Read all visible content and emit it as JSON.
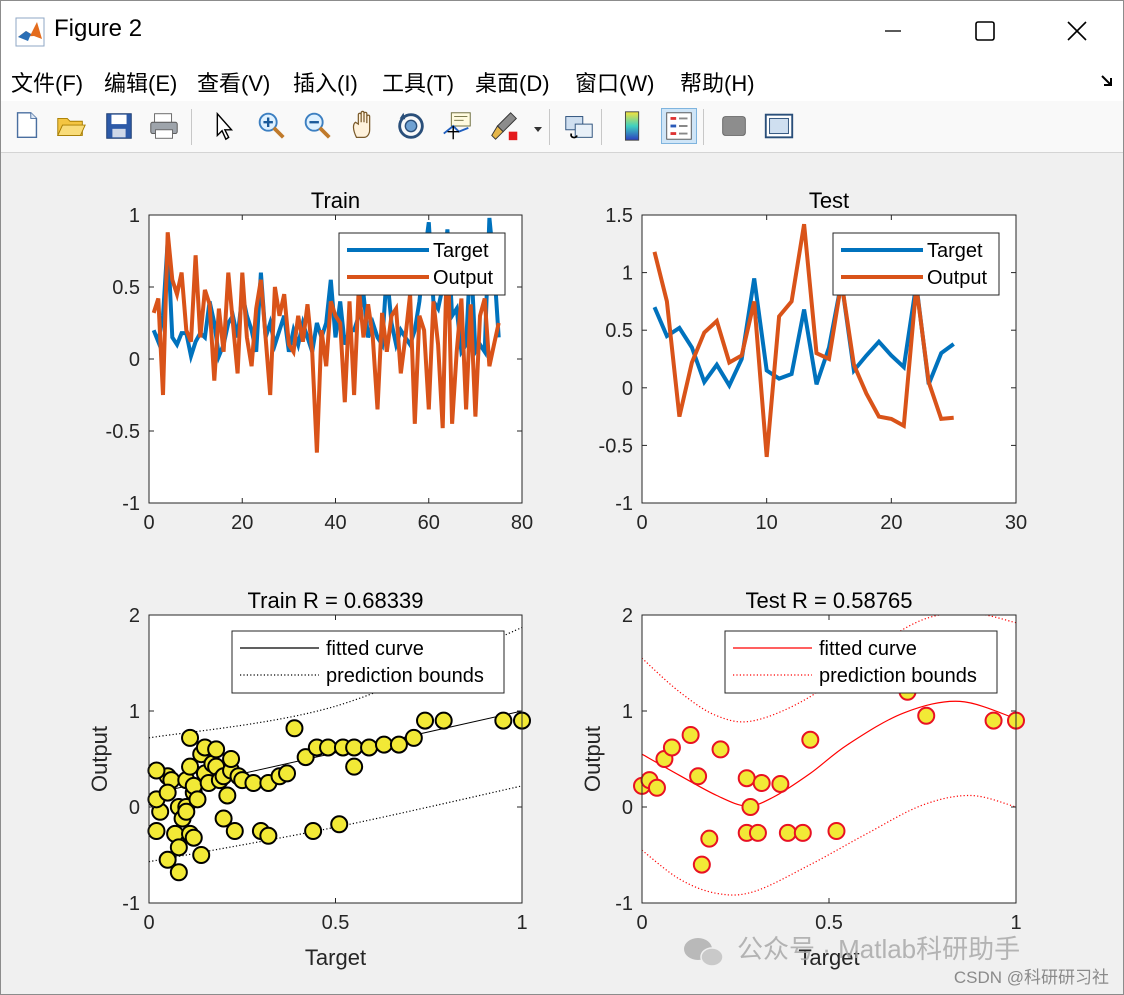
{
  "window": {
    "title": "Figure 2"
  },
  "menu": [
    "文件(F)",
    "编辑(E)",
    "查看(V)",
    "插入(I)",
    "工具(T)",
    "桌面(D)",
    "窗口(W)",
    "帮助(H)"
  ],
  "toolbar": [
    {
      "name": "new-figure-icon",
      "active": false
    },
    {
      "name": "open-file-icon",
      "active": false
    },
    {
      "name": "save-icon",
      "active": false
    },
    {
      "name": "print-icon",
      "active": false
    },
    {
      "name": "edit-plot-icon",
      "active": false
    },
    {
      "name": "zoom-in-icon",
      "active": false
    },
    {
      "name": "zoom-out-icon",
      "active": false
    },
    {
      "name": "pan-icon",
      "active": false
    },
    {
      "name": "rotate-3d-icon",
      "active": false
    },
    {
      "name": "data-cursor-icon",
      "active": false
    },
    {
      "name": "brush-icon",
      "active": false
    },
    {
      "name": "link-plot-icon",
      "active": false
    },
    {
      "name": "colorbar-icon",
      "active": false
    },
    {
      "name": "legend-icon",
      "active": true
    },
    {
      "name": "hide-plot-tools-icon",
      "active": false
    },
    {
      "name": "show-plot-tools-icon",
      "active": false
    }
  ],
  "colors": {
    "target": "#0072bd",
    "output": "#d95319",
    "marker_fill": "#f2e936",
    "test_fit": "#ff0000"
  },
  "watermark": {
    "main": "公众号 · Matlab科研助手",
    "csdn": "CSDN @科研研习社"
  },
  "chart_data": [
    {
      "id": "train-series",
      "type": "line",
      "title": "Train",
      "xlim": [
        0,
        80
      ],
      "ylim": [
        -1,
        1
      ],
      "xticks": [
        0,
        20,
        40,
        60,
        80
      ],
      "yticks": [
        -1,
        -0.5,
        0,
        0.5,
        1
      ],
      "xticklabels": [
        "0",
        "20",
        "40",
        "60",
        "80"
      ],
      "yticklabels": [
        "-1",
        "-0.5",
        "0",
        "0.5",
        "1"
      ],
      "xlabel": "",
      "ylabel": "",
      "legend_position": "top-right",
      "series": [
        {
          "name": "Target",
          "color": "#0072bd",
          "values": [
            0.2,
            0.12,
            0.3,
            0.82,
            0.15,
            0.1,
            0.18,
            0.18,
            0.02,
            0.12,
            0.18,
            0.15,
            0.4,
            0.25,
            0.02,
            0.1,
            0.25,
            0.3,
            0.15,
            0.45,
            0.3,
            0.2,
            0.05,
            0.6,
            0.15,
            0.25,
            0.1,
            0.2,
            0.3,
            0.05,
            0.2,
            0.1,
            0.25,
            0.15,
            0.05,
            0.25,
            0.15,
            0.25,
            0.55,
            0.15,
            0.4,
            0.1,
            0.2,
            0.2,
            0.3,
            0.45,
            0.15,
            0.25,
            0.15,
            0.1,
            0.6,
            0.25,
            0.1,
            0.2,
            0.15,
            0.1,
            0.2,
            0.4,
            0.7,
            0.95,
            0.4,
            0.35,
            0.5,
            0.9,
            0.3,
            0.35,
            0.05,
            0.1,
            0.75,
            0.05,
            0.1,
            0.05,
            0.98,
            0.65,
            0.15
          ]
        },
        {
          "name": "Output",
          "color": "#d95319",
          "values": [
            0.32,
            0.42,
            -0.25,
            0.88,
            0.55,
            0.45,
            0.6,
            0.2,
            0.12,
            0.72,
            0.15,
            0.48,
            0.38,
            -0.15,
            0.35,
            0.05,
            0.6,
            0.25,
            -0.1,
            0.6,
            0.15,
            -0.05,
            0.35,
            0.55,
            0.15,
            -0.25,
            0.5,
            0.3,
            0.45,
            0.1,
            0.05,
            0.3,
            0.12,
            0.38,
            0.05,
            -0.65,
            0.2,
            -0.05,
            0.4,
            0.3,
            0.25,
            -0.3,
            0.4,
            -0.25,
            0.5,
            0.15,
            0.38,
            0.15,
            -0.35,
            0.32,
            0.05,
            0.3,
            0.35,
            -0.1,
            0.15,
            0.45,
            -0.45,
            0.3,
            0.2,
            -0.35,
            0.4,
            0.1,
            -0.48,
            0.85,
            -0.45,
            0.05,
            0.42,
            -0.35,
            0.38,
            -0.4,
            0.3,
            0.42,
            -0.05,
            0.1,
            0.25
          ]
        }
      ]
    },
    {
      "id": "test-series",
      "type": "line",
      "title": "Test",
      "xlim": [
        0,
        30
      ],
      "ylim": [
        -1,
        1.5
      ],
      "xticks": [
        0,
        10,
        20,
        30
      ],
      "yticks": [
        -1,
        -0.5,
        0,
        0.5,
        1,
        1.5
      ],
      "xticklabels": [
        "0",
        "10",
        "20",
        "30"
      ],
      "yticklabels": [
        "-1",
        "-0.5",
        "0",
        "0.5",
        "1",
        "1.5"
      ],
      "xlabel": "",
      "ylabel": "",
      "legend_position": "top-right",
      "series": [
        {
          "name": "Target",
          "color": "#0072bd",
          "values": [
            0.7,
            0.45,
            0.52,
            0.35,
            0.05,
            0.2,
            0.02,
            0.25,
            0.95,
            0.15,
            0.08,
            0.12,
            0.68,
            0.03,
            0.35,
            0.92,
            0.15,
            0.28,
            0.4,
            0.28,
            0.18,
            0.9,
            0.03,
            0.3,
            0.38
          ]
        },
        {
          "name": "Output",
          "color": "#d95319",
          "values": [
            1.18,
            0.75,
            -0.25,
            0.22,
            0.48,
            0.58,
            0.22,
            0.28,
            0.75,
            -0.6,
            0.62,
            0.75,
            1.42,
            0.3,
            0.25,
            0.92,
            0.2,
            -0.05,
            -0.25,
            -0.27,
            -0.33,
            0.88,
            0.05,
            -0.27,
            -0.26
          ]
        }
      ]
    },
    {
      "id": "train-regression",
      "type": "scatter",
      "title": "Train  R = 0.68339",
      "xlim": [
        0,
        1
      ],
      "ylim": [
        -1,
        2
      ],
      "xticks": [
        0,
        0.5,
        1
      ],
      "yticks": [
        -1,
        0,
        1,
        2
      ],
      "xticklabels": [
        "0",
        "0.5",
        "1"
      ],
      "yticklabels": [
        "-1",
        "0",
        "1",
        "2"
      ],
      "xlabel": "Target",
      "ylabel": "Output",
      "legend_position": "top-right",
      "legend": [
        "fitted curve",
        "prediction bounds"
      ],
      "fit": {
        "color": "#000000",
        "kind": "linear",
        "x0": 0,
        "y0": 0.13,
        "x1": 1,
        "y1": 1.0
      },
      "bounds": {
        "color": "#000000",
        "lower": [
          [
            0,
            -0.57
          ],
          [
            0.5,
            -0.21
          ],
          [
            1,
            0.22
          ]
        ],
        "upper": [
          [
            0,
            0.72
          ],
          [
            0.5,
            1.05
          ],
          [
            1,
            1.87
          ]
        ]
      },
      "marker": {
        "fill": "#f2e936",
        "edge": "#000000"
      },
      "points": [
        [
          0.05,
          0.32
        ],
        [
          0.06,
          0.28
        ],
        [
          0.02,
          0.38
        ],
        [
          0.08,
          0.0
        ],
        [
          0.1,
          0.0
        ],
        [
          0.12,
          0.15
        ],
        [
          0.1,
          0.28
        ],
        [
          0.11,
          0.42
        ],
        [
          0.12,
          0.22
        ],
        [
          0.14,
          0.55
        ],
        [
          0.15,
          0.62
        ],
        [
          0.15,
          0.35
        ],
        [
          0.16,
          0.25
        ],
        [
          0.17,
          0.45
        ],
        [
          0.18,
          0.6
        ],
        [
          0.18,
          0.42
        ],
        [
          0.19,
          0.28
        ],
        [
          0.2,
          0.32
        ],
        [
          0.21,
          0.12
        ],
        [
          0.22,
          0.38
        ],
        [
          0.22,
          0.5
        ],
        [
          0.24,
          0.32
        ],
        [
          0.25,
          0.28
        ],
        [
          0.28,
          0.25
        ],
        [
          0.32,
          0.25
        ],
        [
          0.35,
          0.32
        ],
        [
          0.37,
          0.35
        ],
        [
          0.39,
          0.82
        ],
        [
          0.42,
          0.52
        ],
        [
          0.45,
          0.62
        ],
        [
          0.48,
          0.62
        ],
        [
          0.52,
          0.62
        ],
        [
          0.55,
          0.62
        ],
        [
          0.55,
          0.42
        ],
        [
          0.59,
          0.62
        ],
        [
          0.63,
          0.65
        ],
        [
          0.67,
          0.65
        ],
        [
          0.71,
          0.72
        ],
        [
          0.74,
          0.9
        ],
        [
          0.79,
          0.9
        ],
        [
          0.95,
          0.9
        ],
        [
          1.0,
          0.9
        ],
        [
          0.02,
          -0.25
        ],
        [
          0.03,
          -0.05
        ],
        [
          0.05,
          -0.55
        ],
        [
          0.07,
          -0.28
        ],
        [
          0.08,
          -0.42
        ],
        [
          0.09,
          -0.12
        ],
        [
          0.1,
          -0.05
        ],
        [
          0.11,
          -0.28
        ],
        [
          0.12,
          -0.32
        ],
        [
          0.14,
          -0.5
        ],
        [
          0.2,
          -0.12
        ],
        [
          0.23,
          -0.25
        ],
        [
          0.3,
          -0.25
        ],
        [
          0.32,
          -0.3
        ],
        [
          0.44,
          -0.25
        ],
        [
          0.51,
          -0.18
        ],
        [
          0.08,
          -0.68
        ],
        [
          0.02,
          0.08
        ],
        [
          0.05,
          0.15
        ],
        [
          0.13,
          0.08
        ],
        [
          0.11,
          0.72
        ]
      ]
    },
    {
      "id": "test-regression",
      "type": "scatter",
      "title": "Test  R = 0.58765",
      "xlim": [
        0,
        1
      ],
      "ylim": [
        -1,
        2
      ],
      "xticks": [
        0,
        0.5,
        1
      ],
      "yticks": [
        -1,
        0,
        1,
        2
      ],
      "xticklabels": [
        "0",
        "0.5",
        "1"
      ],
      "yticklabels": [
        "-1",
        "0",
        "1",
        "2"
      ],
      "xlabel": "Target",
      "ylabel": "Output",
      "legend_position": "top-right",
      "legend": [
        "fitted curve",
        "prediction bounds"
      ],
      "fit": {
        "color": "#ff0000",
        "kind": "curve",
        "samples": [
          [
            0,
            0.55
          ],
          [
            0.1,
            0.33
          ],
          [
            0.2,
            0.12
          ],
          [
            0.28,
            0.01
          ],
          [
            0.35,
            0.1
          ],
          [
            0.45,
            0.35
          ],
          [
            0.55,
            0.65
          ],
          [
            0.7,
            0.98
          ],
          [
            0.85,
            1.1
          ],
          [
            1.0,
            0.92
          ]
        ]
      },
      "bounds": {
        "color": "#ff0000",
        "lower": [
          [
            0,
            -0.45
          ],
          [
            0.1,
            -0.75
          ],
          [
            0.2,
            -0.9
          ],
          [
            0.3,
            -0.88
          ],
          [
            0.45,
            -0.6
          ],
          [
            0.6,
            -0.28
          ],
          [
            0.75,
            0.02
          ],
          [
            0.88,
            0.12
          ],
          [
            1.0,
            0.0
          ]
        ],
        "upper": [
          [
            0,
            1.55
          ],
          [
            0.1,
            1.2
          ],
          [
            0.2,
            0.95
          ],
          [
            0.3,
            0.9
          ],
          [
            0.45,
            1.15
          ],
          [
            0.6,
            1.6
          ],
          [
            0.75,
            1.95
          ],
          [
            0.88,
            2.02
          ],
          [
            1.0,
            1.92
          ]
        ]
      },
      "marker": {
        "fill": "#f2e936",
        "edge": "#e81123"
      },
      "points": [
        [
          0.0,
          0.22
        ],
        [
          0.02,
          0.28
        ],
        [
          0.04,
          0.2
        ],
        [
          0.06,
          0.5
        ],
        [
          0.08,
          0.62
        ],
        [
          0.13,
          0.75
        ],
        [
          0.15,
          0.32
        ],
        [
          0.16,
          -0.6
        ],
        [
          0.18,
          -0.33
        ],
        [
          0.21,
          0.6
        ],
        [
          0.28,
          0.3
        ],
        [
          0.28,
          -0.27
        ],
        [
          0.29,
          0.0
        ],
        [
          0.31,
          -0.27
        ],
        [
          0.32,
          0.25
        ],
        [
          0.37,
          0.24
        ],
        [
          0.39,
          -0.27
        ],
        [
          0.43,
          -0.27
        ],
        [
          0.45,
          0.7
        ],
        [
          0.52,
          -0.25
        ],
        [
          0.71,
          1.2
        ],
        [
          0.76,
          0.95
        ],
        [
          0.94,
          0.9
        ],
        [
          1.0,
          0.9
        ]
      ]
    }
  ]
}
